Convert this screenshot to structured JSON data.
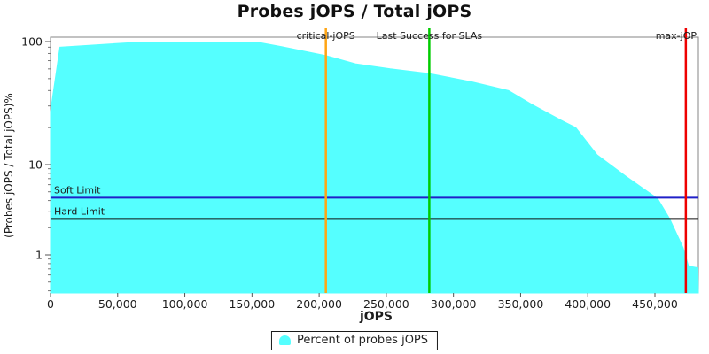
{
  "title": "Probes jOPS / Total jOPS",
  "legend": {
    "label": "Percent of probes jOPS",
    "marker_color": "#55ffff"
  },
  "chart_data": {
    "type": "area",
    "title": "Probes jOPS / Total jOPS",
    "xlabel": "jOPS",
    "ylabel": "(Probes jOPS / Total jOPS)%",
    "x_scale": "linear",
    "y_scale": "log",
    "xlim": [
      0,
      482000
    ],
    "ylim": [
      0.38,
      108
    ],
    "grid": false,
    "x_ticks": [
      0,
      50000,
      100000,
      150000,
      200000,
      250000,
      300000,
      350000,
      400000,
      450000
    ],
    "x_tick_labels": [
      "0",
      "50,000",
      "100,000",
      "150,000",
      "200,000",
      "250,000",
      "300,000",
      "350,000",
      "400,000",
      "450,000"
    ],
    "y_ticks": [
      100,
      10,
      1
    ],
    "y_tick_labels": [
      "100",
      "10",
      "1"
    ],
    "legend_position": "bottom",
    "series": [
      {
        "name": "Percent of probes jOPS",
        "color": "#55ffff",
        "points": [
          [
            0,
            27
          ],
          [
            7000,
            90
          ],
          [
            60000,
            98
          ],
          [
            156000,
            98
          ],
          [
            172000,
            91
          ],
          [
            205000,
            77
          ],
          [
            227000,
            66
          ],
          [
            253000,
            60
          ],
          [
            282000,
            55
          ],
          [
            314000,
            47
          ],
          [
            341000,
            40
          ],
          [
            358000,
            31
          ],
          [
            380000,
            23
          ],
          [
            391000,
            20
          ],
          [
            407000,
            12
          ],
          [
            429000,
            7.3
          ],
          [
            452000,
            4.2
          ],
          [
            461000,
            2.5
          ],
          [
            471000,
            1.2
          ],
          [
            475000,
            0.75
          ],
          [
            482000,
            0.72
          ]
        ]
      }
    ],
    "vlines": [
      {
        "label": "critical-jOPS",
        "x": 205000,
        "color": "#ffa514"
      },
      {
        "label": "Last Success for SLAs",
        "x": 282000,
        "color": "#00cc00"
      },
      {
        "label": "max-jOP",
        "x": 473000,
        "color": "#ee0000"
      }
    ],
    "hlines": [
      {
        "label": "Soft Limit",
        "y": 4.3,
        "color": "#2020c8"
      },
      {
        "label": "Hard Limit",
        "y": 2.5,
        "color": "#111111"
      }
    ]
  }
}
